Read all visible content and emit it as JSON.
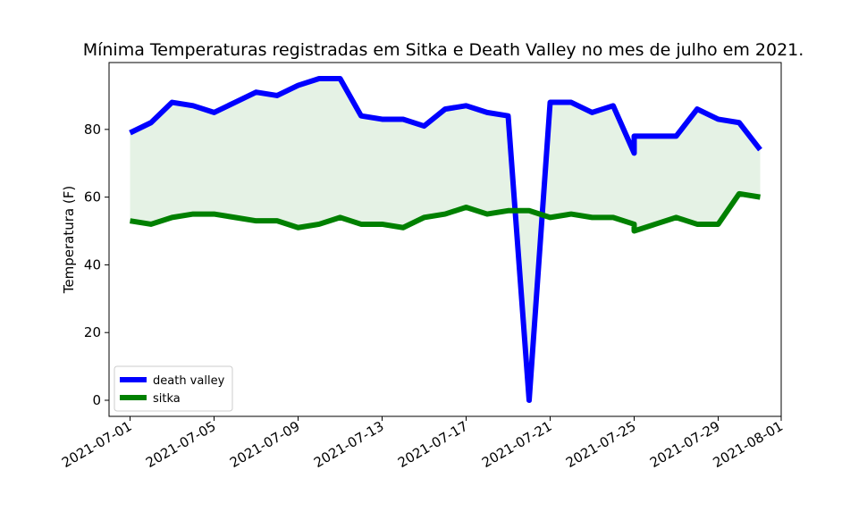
{
  "chart_data": {
    "type": "line",
    "title": "Mínima Temperaturas registradas em Sitka e Death Valley no mes de julho em 2021.",
    "xlabel": "",
    "ylabel": "Temperatura (F)",
    "ylim": [
      -4.75,
      99.75
    ],
    "yticks": [
      0,
      20,
      40,
      60,
      80
    ],
    "xlim": [
      "2021-06-30",
      "2021-08-01"
    ],
    "xticks": [
      "2021-07-01",
      "2021-07-05",
      "2021-07-09",
      "2021-07-13",
      "2021-07-17",
      "2021-07-21",
      "2021-07-25",
      "2021-07-29",
      "2021-08-01"
    ],
    "grid": false,
    "legend_position": "lower-left",
    "fill_between": {
      "color": "#e5f2e5"
    },
    "series": [
      {
        "name": "death valley",
        "color": "#0000ff",
        "points": [
          [
            "2021-07-01",
            79
          ],
          [
            "2021-07-02",
            82
          ],
          [
            "2021-07-03",
            88
          ],
          [
            "2021-07-04",
            87
          ],
          [
            "2021-07-05",
            85
          ],
          [
            "2021-07-06",
            88
          ],
          [
            "2021-07-07",
            91
          ],
          [
            "2021-07-08",
            90
          ],
          [
            "2021-07-09",
            93
          ],
          [
            "2021-07-10",
            95
          ],
          [
            "2021-07-11",
            95
          ],
          [
            "2021-07-12",
            84
          ],
          [
            "2021-07-13",
            83
          ],
          [
            "2021-07-14",
            83
          ],
          [
            "2021-07-15",
            81
          ],
          [
            "2021-07-16",
            86
          ],
          [
            "2021-07-17",
            87
          ],
          [
            "2021-07-18",
            85
          ],
          [
            "2021-07-19",
            84
          ],
          [
            "2021-07-20",
            0
          ],
          [
            "2021-07-21",
            88
          ],
          [
            "2021-07-22",
            88
          ],
          [
            "2021-07-23",
            85
          ],
          [
            "2021-07-24",
            87
          ],
          [
            "2021-07-25",
            73
          ],
          [
            "2021-07-25",
            78
          ],
          [
            "2021-07-26",
            78
          ],
          [
            "2021-07-27",
            78
          ],
          [
            "2021-07-28",
            86
          ],
          [
            "2021-07-29",
            83
          ],
          [
            "2021-07-30",
            82
          ],
          [
            "2021-07-31",
            74
          ]
        ]
      },
      {
        "name": "sitka",
        "color": "#008000",
        "points": [
          [
            "2021-07-01",
            53
          ],
          [
            "2021-07-02",
            52
          ],
          [
            "2021-07-03",
            54
          ],
          [
            "2021-07-04",
            55
          ],
          [
            "2021-07-05",
            55
          ],
          [
            "2021-07-06",
            54
          ],
          [
            "2021-07-07",
            53
          ],
          [
            "2021-07-08",
            53
          ],
          [
            "2021-07-09",
            51
          ],
          [
            "2021-07-10",
            52
          ],
          [
            "2021-07-11",
            54
          ],
          [
            "2021-07-12",
            52
          ],
          [
            "2021-07-13",
            52
          ],
          [
            "2021-07-14",
            51
          ],
          [
            "2021-07-15",
            54
          ],
          [
            "2021-07-16",
            55
          ],
          [
            "2021-07-17",
            57
          ],
          [
            "2021-07-18",
            55
          ],
          [
            "2021-07-19",
            56
          ],
          [
            "2021-07-20",
            56
          ],
          [
            "2021-07-21",
            54
          ],
          [
            "2021-07-22",
            55
          ],
          [
            "2021-07-23",
            54
          ],
          [
            "2021-07-24",
            54
          ],
          [
            "2021-07-25",
            52
          ],
          [
            "2021-07-25",
            50
          ],
          [
            "2021-07-26",
            52
          ],
          [
            "2021-07-27",
            54
          ],
          [
            "2021-07-28",
            52
          ],
          [
            "2021-07-29",
            52
          ],
          [
            "2021-07-30",
            61
          ],
          [
            "2021-07-31",
            60
          ]
        ]
      }
    ]
  }
}
